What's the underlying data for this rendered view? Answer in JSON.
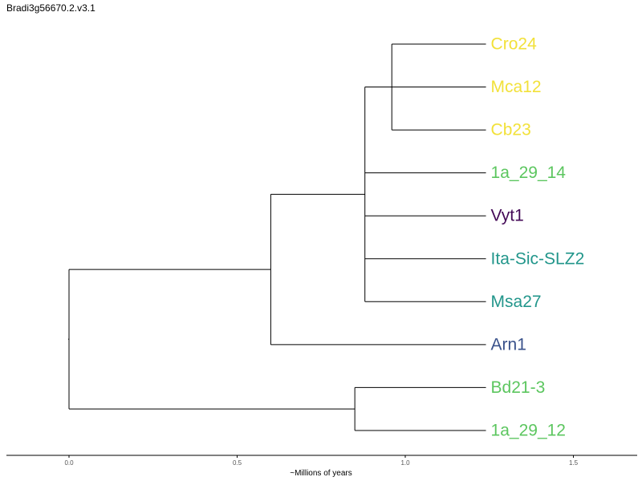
{
  "title": "Bradi3g56670.2.v3.1",
  "axis": {
    "label": "~Millions of years",
    "ticks": [
      0.0,
      0.5,
      1.0,
      1.5
    ],
    "tick_labels": [
      "0.0",
      "0.5",
      "1.0",
      "1.5"
    ],
    "range": [
      -0.18,
      1.69
    ]
  },
  "leaves": [
    {
      "name": "Cro24",
      "color": "#f2e13a"
    },
    {
      "name": "Mca12",
      "color": "#f2e13a"
    },
    {
      "name": "Cb23",
      "color": "#f2e13a"
    },
    {
      "name": "1a_29_14",
      "color": "#5cc65f"
    },
    {
      "name": "Vyt1",
      "color": "#440a57"
    },
    {
      "name": "Ita-Sic-SLZ2",
      "color": "#22968b"
    },
    {
      "name": "Msa27",
      "color": "#22968b"
    },
    {
      "name": "Arn1",
      "color": "#3a528b"
    },
    {
      "name": "Bd21-3",
      "color": "#5cc65f"
    },
    {
      "name": "1a_29_12",
      "color": "#5cc65f"
    }
  ],
  "tree": {
    "t": 0.0,
    "children": [
      {
        "t": 0.6,
        "children": [
          {
            "t": 0.88,
            "children": [
              {
                "t": 0.96,
                "children": [
                  {
                    "leaf": 0,
                    "t": 1.24
                  },
                  {
                    "leaf": 1,
                    "t": 1.24
                  },
                  {
                    "leaf": 2,
                    "t": 1.24
                  }
                ]
              },
              {
                "leaf": 3,
                "t": 1.24
              },
              {
                "leaf": 4,
                "t": 1.24
              },
              {
                "leaf": 5,
                "t": 1.24
              },
              {
                "leaf": 6,
                "t": 1.24
              }
            ]
          },
          {
            "leaf": 7,
            "t": 1.24
          }
        ]
      },
      {
        "t": 0.85,
        "children": [
          {
            "leaf": 8,
            "t": 1.24
          },
          {
            "leaf": 9,
            "t": 1.24
          }
        ]
      }
    ]
  }
}
